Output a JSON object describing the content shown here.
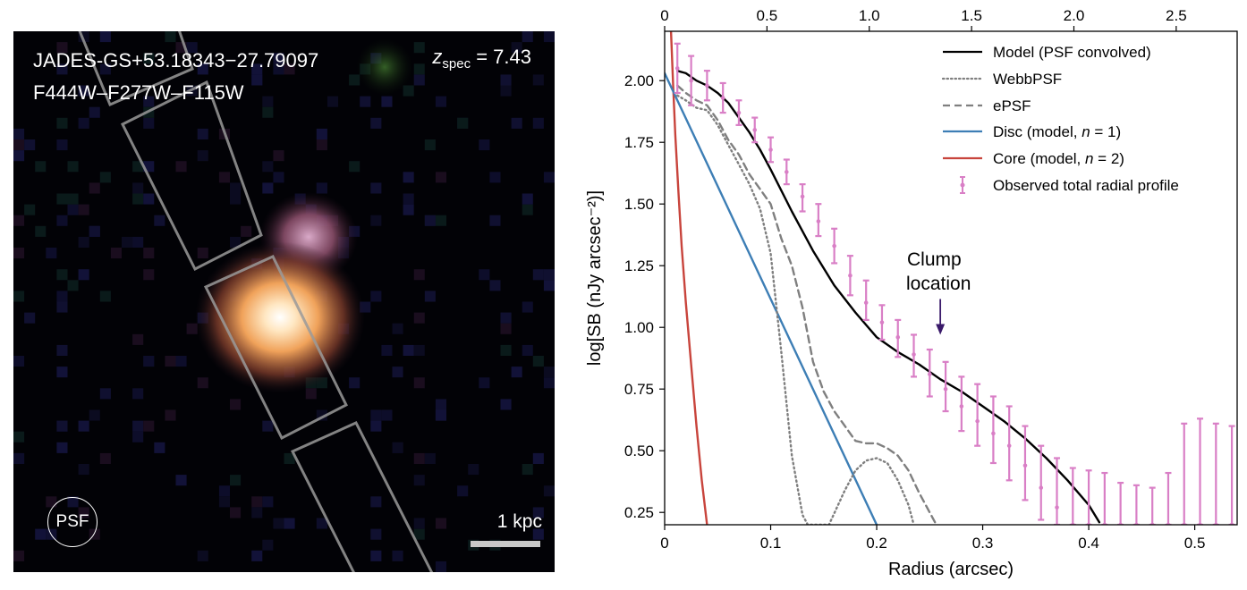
{
  "image_panel": {
    "galaxy_id": "JADES-GS+53.18343−27.79097",
    "filters": "F444W–F277W–F115W",
    "zspec_symbol": "z",
    "zspec_sub": "spec",
    "zspec_value": " = 7.43",
    "psf_label": "PSF",
    "scale_label": "1 kpc"
  },
  "chart_data": {
    "type": "line",
    "xlabel": "Radius (arcsec)",
    "ylabel": "log[SB (nJy arcsec⁻²)]",
    "xlim": [
      0,
      0.54
    ],
    "ylim": [
      0.2,
      2.2
    ],
    "x_ticks": [
      "0",
      "0.1",
      "0.2",
      "0.3",
      "0.4",
      "0.5"
    ],
    "x_tick_values": [
      0,
      0.1,
      0.2,
      0.3,
      0.4,
      0.5
    ],
    "x_top_ticks": [
      "0",
      "0.5",
      "1.0",
      "1.5",
      "2.0",
      "2.5"
    ],
    "x_top_tick_values": [
      0,
      0.5,
      1.0,
      1.5,
      2.0,
      2.5
    ],
    "x_top_scale_arcsec_per_unit": 0.193,
    "y_ticks": [
      "0.25",
      "0.50",
      "0.75",
      "1.00",
      "1.25",
      "1.50",
      "1.75",
      "2.00"
    ],
    "y_tick_values": [
      0.25,
      0.5,
      0.75,
      1.0,
      1.25,
      1.5,
      1.75,
      2.0
    ],
    "legend_position": "top-right",
    "series": [
      {
        "name": "Model (PSF convolved)",
        "color": "#000000",
        "style": "solid",
        "x": [
          0.012,
          0.02,
          0.03,
          0.04,
          0.05,
          0.06,
          0.07,
          0.08,
          0.09,
          0.1,
          0.12,
          0.14,
          0.16,
          0.18,
          0.2,
          0.22,
          0.24,
          0.26,
          0.28,
          0.3,
          0.32,
          0.34,
          0.36,
          0.38,
          0.4,
          0.41
        ],
        "y": [
          2.04,
          2.03,
          2.0,
          1.98,
          1.95,
          1.91,
          1.85,
          1.79,
          1.72,
          1.64,
          1.47,
          1.31,
          1.17,
          1.06,
          0.96,
          0.9,
          0.85,
          0.79,
          0.74,
          0.68,
          0.62,
          0.55,
          0.47,
          0.38,
          0.28,
          0.21
        ]
      },
      {
        "name": "WebbPSF",
        "color": "#7f7f7f",
        "style": "dotted",
        "x": [
          0.012,
          0.02,
          0.03,
          0.04,
          0.05,
          0.06,
          0.07,
          0.08,
          0.09,
          0.1,
          0.11,
          0.12,
          0.13,
          0.135,
          0.155,
          0.17,
          0.18,
          0.19,
          0.2,
          0.21,
          0.22,
          0.23,
          0.235
        ],
        "y": [
          1.94,
          1.92,
          1.89,
          1.88,
          1.82,
          1.74,
          1.66,
          1.58,
          1.48,
          1.3,
          0.9,
          0.48,
          0.24,
          0.2,
          0.2,
          0.34,
          0.42,
          0.46,
          0.47,
          0.45,
          0.38,
          0.28,
          0.2
        ]
      },
      {
        "name": "ePSF",
        "color": "#7f7f7f",
        "style": "dashed",
        "x": [
          0.012,
          0.02,
          0.03,
          0.04,
          0.05,
          0.06,
          0.07,
          0.08,
          0.09,
          0.1,
          0.11,
          0.12,
          0.13,
          0.14,
          0.15,
          0.16,
          0.17,
          0.18,
          0.19,
          0.2,
          0.21,
          0.22,
          0.23,
          0.24,
          0.255
        ],
        "y": [
          1.98,
          1.95,
          1.92,
          1.9,
          1.84,
          1.76,
          1.7,
          1.62,
          1.56,
          1.5,
          1.36,
          1.25,
          1.08,
          0.86,
          0.74,
          0.66,
          0.6,
          0.54,
          0.53,
          0.53,
          0.51,
          0.48,
          0.42,
          0.33,
          0.21
        ]
      },
      {
        "name": "Disc (model, n = 1)",
        "color": "#3d7eb5",
        "style": "solid",
        "x": [
          0.0,
          0.2
        ],
        "y": [
          2.03,
          0.2
        ]
      },
      {
        "name": "Core (model, n = 2)",
        "color": "#c8443c",
        "style": "solid",
        "x": [
          0.006,
          0.008,
          0.01,
          0.013,
          0.016,
          0.02,
          0.025,
          0.03,
          0.035,
          0.04
        ],
        "y": [
          2.2,
          1.98,
          1.78,
          1.55,
          1.33,
          1.1,
          0.85,
          0.6,
          0.38,
          0.2
        ]
      }
    ],
    "observed": {
      "name": "Observed total radial profile",
      "color": "#d97fc6",
      "x": [
        0.012,
        0.025,
        0.04,
        0.055,
        0.07,
        0.085,
        0.1,
        0.115,
        0.13,
        0.145,
        0.16,
        0.175,
        0.19,
        0.205,
        0.22,
        0.235,
        0.25,
        0.265,
        0.28,
        0.295,
        0.31,
        0.325,
        0.34,
        0.355,
        0.37,
        0.385,
        0.4,
        0.415,
        0.43,
        0.445,
        0.46,
        0.475,
        0.49,
        0.505,
        0.52,
        0.535
      ],
      "y": [
        2.05,
        2.0,
        1.98,
        1.93,
        1.87,
        1.8,
        1.72,
        1.63,
        1.53,
        1.43,
        1.33,
        1.21,
        1.1,
        1.02,
        0.96,
        0.89,
        0.81,
        0.75,
        0.68,
        0.62,
        0.57,
        0.52,
        0.44,
        0.35,
        0.27,
        0.2,
        0.2,
        0.2,
        0.2,
        0.2,
        0.2,
        0.2,
        0.2,
        0.2,
        0.2,
        0.2
      ],
      "err_lo": [
        1.95,
        1.9,
        1.92,
        1.87,
        1.82,
        1.75,
        1.67,
        1.58,
        1.47,
        1.37,
        1.26,
        1.13,
        1.03,
        0.95,
        0.88,
        0.8,
        0.72,
        0.66,
        0.58,
        0.52,
        0.45,
        0.38,
        0.3,
        0.22,
        0.2,
        0.2,
        0.2,
        0.2,
        0.2,
        0.2,
        0.2,
        0.2,
        0.2,
        0.2,
        0.2,
        0.2
      ],
      "err_hi": [
        2.15,
        2.1,
        2.04,
        1.99,
        1.92,
        1.85,
        1.77,
        1.68,
        1.58,
        1.5,
        1.4,
        1.29,
        1.19,
        1.09,
        1.03,
        0.97,
        0.91,
        0.86,
        0.8,
        0.77,
        0.72,
        0.68,
        0.6,
        0.52,
        0.47,
        0.43,
        0.42,
        0.41,
        0.37,
        0.36,
        0.35,
        0.41,
        0.61,
        0.63,
        0.61,
        0.6
      ]
    },
    "annotation": {
      "text_line1": "Clump",
      "text_line2": "location",
      "x": 0.26,
      "y_arrow_tip": 0.97
    }
  },
  "legend": {
    "model": "Model (PSF convolved)",
    "webbpsf": "WebbPSF",
    "epsf": "ePSF",
    "disc_prefix": "Disc (model, ",
    "disc_n": "n",
    "disc_suffix": " = 1)",
    "core_prefix": "Core (model, ",
    "core_n": "n",
    "core_suffix": " = 2)",
    "observed": "Observed total radial profile"
  }
}
